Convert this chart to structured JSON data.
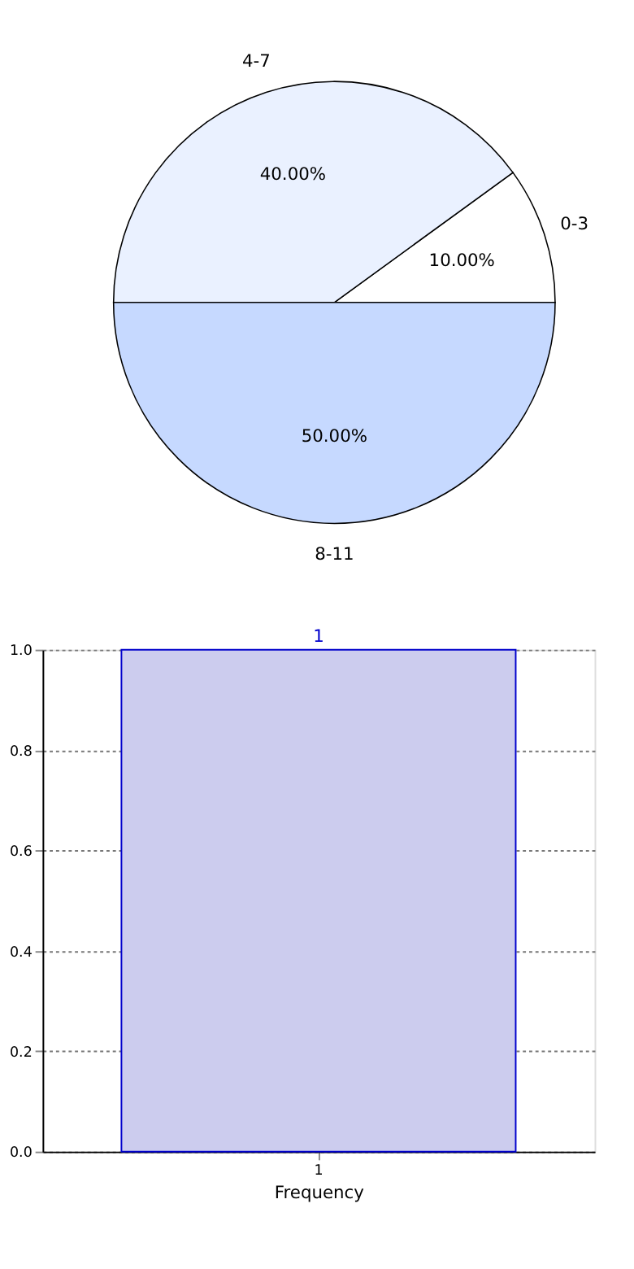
{
  "chart_data": [
    {
      "type": "pie",
      "categories": [
        "0-3",
        "4-7",
        "8-11"
      ],
      "values": [
        10,
        40,
        50
      ],
      "colors": [
        "#ffffff",
        "#eaf1ff",
        "#c6d9ff"
      ],
      "value_labels": [
        "10.00%",
        "40.00%",
        "50.00%"
      ]
    },
    {
      "type": "bar",
      "categories": [
        "1"
      ],
      "values": [
        1
      ],
      "color": "#ccccee",
      "xlabel": "Frequency",
      "ylim": [
        0,
        1
      ],
      "yticks": [
        {
          "value": 0,
          "label": "0.0"
        },
        {
          "value": 0.2,
          "label": "0.2"
        },
        {
          "value": 0.4,
          "label": "0.4"
        },
        {
          "value": 0.6,
          "label": "0.6"
        },
        {
          "value": 0.8,
          "label": "0.8"
        },
        {
          "value": 1,
          "label": "1.0"
        }
      ],
      "data_labels": true,
      "grid": true
    }
  ]
}
